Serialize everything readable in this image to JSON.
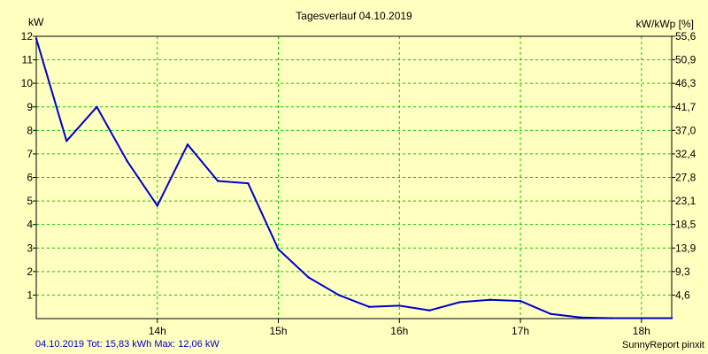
{
  "chart_data": {
    "type": "line",
    "title": "Tagesverlauf 04.10.2019",
    "ylabel_left": "kW",
    "ylabel_right": "kW/kWp [%]",
    "ylim": [
      0,
      12
    ],
    "y_ticks_left": [
      "1",
      "2",
      "3",
      "4",
      "5",
      "6",
      "7",
      "8",
      "9",
      "10",
      "11",
      "12"
    ],
    "y_ticks_right": [
      "4,6",
      "9,3",
      "13,9",
      "18,5",
      "23,1",
      "27,8",
      "32,4",
      "37,0",
      "41,7",
      "46,3",
      "50,9",
      "55,6"
    ],
    "x_range_hours": [
      13.0,
      18.25
    ],
    "x_ticks": [
      {
        "label": "14h",
        "hour": 14
      },
      {
        "label": "15h",
        "hour": 15
      },
      {
        "label": "16h",
        "hour": 16
      },
      {
        "label": "17h",
        "hour": 17
      },
      {
        "label": "18h",
        "hour": 18
      }
    ],
    "grid": true,
    "series": [
      {
        "color": "#0000cc",
        "points": [
          {
            "x": "13:00",
            "y": 11.9
          },
          {
            "x": "13:15",
            "y": 7.55
          },
          {
            "x": "13:30",
            "y": 9.0
          },
          {
            "x": "13:45",
            "y": 6.7
          },
          {
            "x": "14:00",
            "y": 4.8
          },
          {
            "x": "14:15",
            "y": 7.4
          },
          {
            "x": "14:30",
            "y": 5.85
          },
          {
            "x": "14:45",
            "y": 5.75
          },
          {
            "x": "15:00",
            "y": 2.95
          },
          {
            "x": "15:15",
            "y": 1.75
          },
          {
            "x": "15:30",
            "y": 1.0
          },
          {
            "x": "15:45",
            "y": 0.5
          },
          {
            "x": "16:00",
            "y": 0.55
          },
          {
            "x": "16:15",
            "y": 0.35
          },
          {
            "x": "16:30",
            "y": 0.7
          },
          {
            "x": "16:45",
            "y": 0.8
          },
          {
            "x": "17:00",
            "y": 0.75
          },
          {
            "x": "17:15",
            "y": 0.2
          },
          {
            "x": "17:30",
            "y": 0.05
          },
          {
            "x": "17:45",
            "y": 0.02
          },
          {
            "x": "18:00",
            "y": 0.02
          },
          {
            "x": "18:15",
            "y": 0.02
          }
        ]
      }
    ]
  },
  "footer": {
    "summary": "04.10.2019 Tot: 15,83 kWh Max: 12,06 kW",
    "credit": "SunnyReport pinxit"
  },
  "colors": {
    "background": "#ffffc0",
    "grid": "#00cc00",
    "line": "#0000cc",
    "axis": "#000000",
    "summary_text": "#0000cc"
  }
}
